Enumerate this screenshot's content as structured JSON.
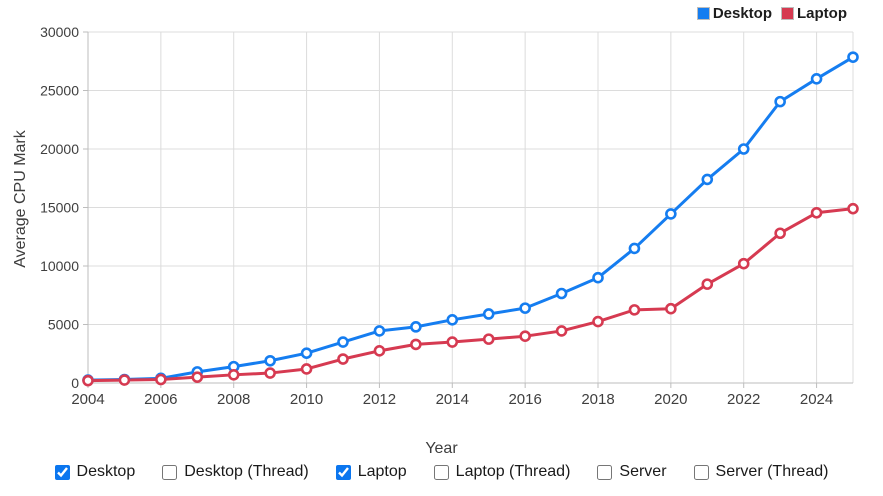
{
  "chart_data": {
    "type": "line",
    "title": "",
    "xlabel": "Year",
    "ylabel": "Average CPU Mark",
    "x": [
      2004,
      2005,
      2006,
      2007,
      2008,
      2009,
      2010,
      2011,
      2012,
      2013,
      2014,
      2015,
      2016,
      2017,
      2018,
      2019,
      2020,
      2021,
      2022,
      2023,
      2024,
      2025
    ],
    "x_tick_labels": [
      "2004",
      "2006",
      "2008",
      "2010",
      "2012",
      "2014",
      "2016",
      "2018",
      "2020",
      "2022",
      "2024"
    ],
    "x_ticks": [
      2004,
      2006,
      2008,
      2010,
      2012,
      2014,
      2016,
      2018,
      2020,
      2022,
      2024
    ],
    "xlim": [
      2004,
      2025
    ],
    "y_ticks": [
      0,
      5000,
      10000,
      15000,
      20000,
      25000,
      30000
    ],
    "y_tick_labels": [
      "0",
      "5000",
      "10000",
      "15000",
      "20000",
      "25000",
      "30000"
    ],
    "ylim": [
      0,
      30000
    ],
    "grid": true,
    "legend_position": "top-right",
    "series": [
      {
        "name": "Desktop",
        "color": "#157df0",
        "values": [
          250,
          300,
          400,
          950,
          1400,
          1900,
          2550,
          3500,
          4450,
          4800,
          5400,
          5900,
          6400,
          7650,
          9000,
          11500,
          14450,
          17400,
          20000,
          24050,
          26000,
          27850
        ]
      },
      {
        "name": "Laptop",
        "color": "#d63a51",
        "values": [
          200,
          250,
          300,
          500,
          700,
          850,
          1200,
          2050,
          2750,
          3300,
          3500,
          3750,
          4000,
          4450,
          5250,
          6250,
          6350,
          8450,
          10200,
          12800,
          14550,
          14900
        ]
      }
    ]
  },
  "controls": {
    "items": [
      {
        "label": "Desktop",
        "checked": true
      },
      {
        "label": "Desktop (Thread)",
        "checked": false
      },
      {
        "label": "Laptop",
        "checked": true
      },
      {
        "label": "Laptop (Thread)",
        "checked": false
      },
      {
        "label": "Server",
        "checked": false
      },
      {
        "label": "Server (Thread)",
        "checked": false
      }
    ]
  },
  "colors": {
    "desktop_line": "#157df0",
    "laptop_line": "#d63a51",
    "checkbox_accent": "#0b76ef",
    "gridline": "#dcdcdc",
    "axis_line": "#bdbdbd",
    "tick_text": "#3f3f3f",
    "background": "#ffffff"
  }
}
